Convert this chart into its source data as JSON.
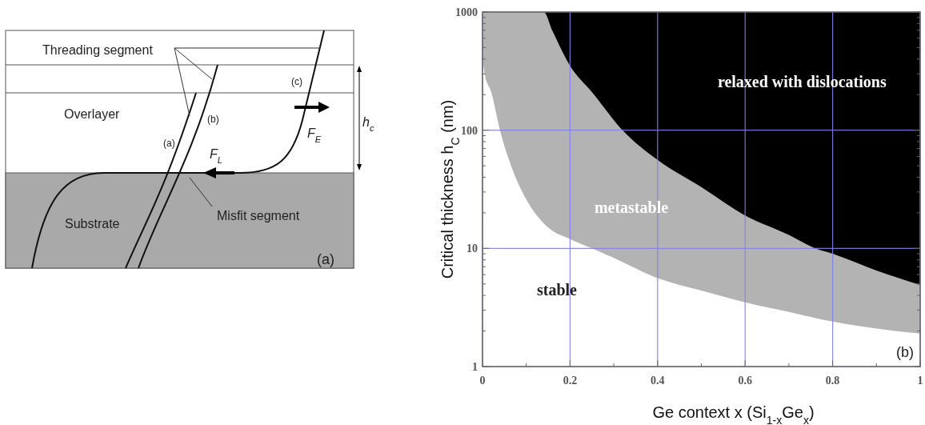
{
  "chart_data": [
    {
      "type": "other",
      "annotations": [
        "Threading segment",
        "Overlayer",
        "Substrate",
        "Misfit segment",
        "(a)",
        "(b)",
        "(c)",
        "F$_{L}$",
        "F$_{E}$",
        "h$_{c}$",
        "(a)"
      ]
    },
    {
      "type": "area",
      "xlabel": "Ge context x (Si$_{1-x}$Ge$_{x}$)",
      "ylabel": "Critical thickness h$_{C}$ (nm)",
      "log": "y",
      "grid": true,
      "xlim": [
        0,
        1
      ],
      "ylim": [
        1,
        1000
      ],
      "xticks": [
        0,
        0.2,
        0.4,
        0.6,
        0.8,
        1
      ],
      "yticks": [
        1,
        10,
        100,
        1000
      ],
      "series": [
        {
          "color": "#b3b3b3",
          "x": [
            0,
            0.14,
            0.16,
            0.2,
            0.25,
            0.32,
            0.4,
            0.5,
            0.6,
            0.7,
            0.76,
            0.8,
            0.9,
            1
          ],
          "values": [
            1000,
            1000,
            690,
            350,
            210,
            100,
            56,
            33,
            19,
            13,
            10,
            9,
            6.5,
            4.9
          ]
        },
        {
          "color": "#ffffff",
          "x": [
            0,
            0.005,
            0.02,
            0.04,
            0.07,
            0.1,
            0.15,
            0.2,
            0.25,
            0.3,
            0.4,
            0.5,
            0.6,
            0.7,
            0.8,
            0.9,
            1
          ],
          "values": [
            400,
            300,
            210,
            100,
            45,
            26,
            15,
            12,
            10,
            8.3,
            5.6,
            4.4,
            3.5,
            2.9,
            2.4,
            2.1,
            1.9
          ]
        }
      ],
      "annotations": [
        "relaxed with dislocations",
        "metastable",
        "stable",
        "(b)"
      ]
    }
  ]
}
